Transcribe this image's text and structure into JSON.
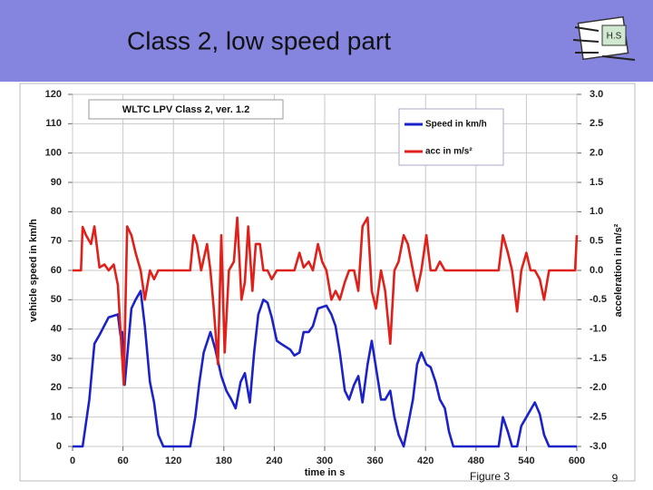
{
  "slide": {
    "title": "Class 2, low speed part",
    "logo_text": "H.S",
    "caption": "Figure 3",
    "page": "9"
  },
  "chart_data": {
    "type": "line",
    "title": "WLTC LPV Class 2, ver. 1.2",
    "xlabel": "time in s",
    "ylabel": "vehicle speed in km/h",
    "y2label": "acceleration in m/s²",
    "xlim": [
      0,
      600
    ],
    "xticks": [
      0,
      60,
      120,
      180,
      240,
      300,
      360,
      420,
      480,
      540,
      600
    ],
    "ylim": [
      0,
      120
    ],
    "yticks": [
      0,
      10,
      20,
      30,
      40,
      50,
      60,
      70,
      80,
      90,
      100,
      110,
      120
    ],
    "y2lim": [
      -3,
      3
    ],
    "y2ticks": [
      {
        "value": -3,
        "label": "-3.0"
      },
      -2.5,
      {
        "value": -2,
        "label": "-2.0"
      },
      -1.5,
      {
        "value": -1,
        "label": "-1.0"
      },
      -0.5,
      {
        "value": 0,
        "label": "0.0"
      },
      0.5,
      {
        "value": 1,
        "label": "1.0"
      },
      1.5,
      {
        "value": 2,
        "label": "2.0"
      },
      2.5,
      {
        "value": 3,
        "label": "3.0"
      }
    ],
    "grid": true,
    "legend": "upper right",
    "series": [
      {
        "name": "Speed in km/h",
        "color": "#1a22c8",
        "x": [
          0,
          10,
          12,
          20,
          26,
          32,
          43,
          54,
          57,
          59,
          62,
          70,
          75,
          81,
          86,
          92,
          97,
          102,
          108,
          140,
          146,
          151,
          156,
          164,
          170,
          177,
          183,
          189,
          194,
          200,
          205,
          211,
          216,
          221,
          227,
          232,
          237,
          243,
          248,
          259,
          264,
          270,
          275,
          281,
          286,
          292,
          302,
          308,
          313,
          318,
          324,
          329,
          335,
          340,
          345,
          351,
          356,
          361,
          367,
          372,
          378,
          383,
          388,
          394,
          399,
          405,
          410,
          415,
          421,
          426,
          432,
          437,
          443,
          448,
          453,
          507,
          512,
          518,
          523,
          529,
          534,
          540,
          550,
          556,
          561,
          567,
          600
        ],
        "values": [
          0,
          0,
          0,
          16,
          35,
          38,
          44,
          45,
          38,
          39,
          21,
          47,
          50,
          53,
          41,
          22,
          15,
          4,
          0,
          0,
          10,
          22,
          32,
          39,
          33,
          24,
          19,
          16,
          13,
          22,
          25,
          15,
          32,
          45,
          50,
          49,
          44,
          36,
          35,
          33,
          31,
          32,
          39,
          39,
          41,
          47,
          48,
          45,
          41,
          32,
          19,
          16,
          21,
          24,
          15,
          28,
          36,
          27,
          16,
          16,
          19,
          10,
          4,
          0,
          7,
          16,
          28,
          32,
          28,
          27,
          22,
          16,
          13,
          5,
          0,
          0,
          10,
          5,
          0,
          0,
          7,
          10,
          15,
          11,
          4,
          0,
          0
        ]
      },
      {
        "name": "acc in m/s²",
        "color": "#e0201a",
        "axis": "y2",
        "x": [
          0,
          10,
          12,
          16,
          22,
          26,
          32,
          38,
          43,
          49,
          54,
          58,
          61,
          65,
          70,
          75,
          81,
          86,
          92,
          97,
          102,
          108,
          140,
          144,
          148,
          153,
          160,
          164,
          168,
          173,
          177,
          181,
          186,
          192,
          196,
          201,
          205,
          209,
          214,
          218,
          223,
          227,
          232,
          237,
          243,
          248,
          254,
          259,
          264,
          270,
          275,
          281,
          286,
          292,
          297,
          302,
          308,
          313,
          318,
          324,
          329,
          335,
          340,
          345,
          351,
          356,
          361,
          367,
          372,
          378,
          383,
          388,
          394,
          399,
          405,
          410,
          415,
          421,
          426,
          432,
          437,
          443,
          507,
          512,
          518,
          523,
          529,
          534,
          540,
          545,
          550,
          556,
          561,
          567,
          598,
          600
        ],
        "values": [
          0,
          0,
          0.74,
          0.6,
          0.45,
          0.75,
          0.05,
          0.1,
          0,
          0.1,
          -0.25,
          -1.25,
          -1.95,
          0.75,
          0.6,
          0.3,
          0,
          -0.5,
          0,
          -0.15,
          0,
          0,
          0,
          0.6,
          0.45,
          0,
          0.45,
          0,
          -0.65,
          -1.6,
          0.6,
          -1.4,
          0,
          0.15,
          0.9,
          -0.5,
          -0.2,
          0.75,
          -0.35,
          0.45,
          0.45,
          0,
          0,
          -0.15,
          0,
          0,
          0,
          0,
          0,
          0.3,
          0.05,
          0.15,
          0,
          0.45,
          0.15,
          0,
          -0.5,
          -0.35,
          -0.5,
          -0.2,
          0,
          0,
          -0.35,
          0.75,
          0.9,
          -0.35,
          -0.65,
          0,
          -0.35,
          -1.25,
          0,
          0.15,
          0.6,
          0.45,
          0,
          -0.35,
          0,
          0.6,
          0,
          0,
          0.15,
          0,
          0,
          0.6,
          0.3,
          0,
          -0.7,
          0,
          0.3,
          0,
          0,
          -0.15,
          -0.5,
          0,
          0,
          0.6
        ]
      }
    ]
  }
}
